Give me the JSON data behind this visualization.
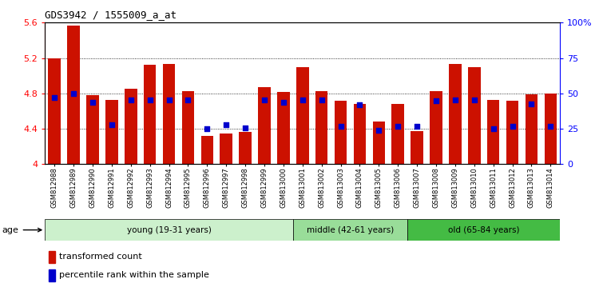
{
  "title": "GDS3942 / 1555009_a_at",
  "samples": [
    "GSM812988",
    "GSM812989",
    "GSM812990",
    "GSM812991",
    "GSM812992",
    "GSM812993",
    "GSM812994",
    "GSM812995",
    "GSM812996",
    "GSM812997",
    "GSM812998",
    "GSM812999",
    "GSM813000",
    "GSM813001",
    "GSM813002",
    "GSM813003",
    "GSM813004",
    "GSM813005",
    "GSM813006",
    "GSM813007",
    "GSM813008",
    "GSM813009",
    "GSM813010",
    "GSM813011",
    "GSM813012",
    "GSM813013",
    "GSM813014"
  ],
  "red_values": [
    5.2,
    5.57,
    4.78,
    4.73,
    4.85,
    5.12,
    5.13,
    4.83,
    4.32,
    4.35,
    4.36,
    4.87,
    4.82,
    5.1,
    4.83,
    4.72,
    4.68,
    4.48,
    4.68,
    4.37,
    4.83,
    5.13,
    5.1,
    4.73,
    4.72,
    4.79,
    4.8
  ],
  "blue_values": [
    4.75,
    4.8,
    4.7,
    4.45,
    4.73,
    4.73,
    4.73,
    4.73,
    4.4,
    4.45,
    4.41,
    4.73,
    4.7,
    4.73,
    4.73,
    4.43,
    4.67,
    4.38,
    4.43,
    4.43,
    4.72,
    4.73,
    4.73,
    4.4,
    4.43,
    4.68,
    4.43
  ],
  "groups": [
    {
      "label": "young (19-31 years)",
      "start": 0,
      "end": 13,
      "color": "#ccf0cc"
    },
    {
      "label": "middle (42-61 years)",
      "start": 13,
      "end": 19,
      "color": "#99dd99"
    },
    {
      "label": "old (65-84 years)",
      "start": 19,
      "end": 27,
      "color": "#44bb44"
    }
  ],
  "ylim_left": [
    4.0,
    5.6
  ],
  "ylim_right": [
    0,
    100
  ],
  "yticks_left": [
    4.0,
    4.4,
    4.8,
    5.2,
    5.6
  ],
  "yticks_right": [
    0,
    25,
    50,
    75,
    100
  ],
  "ytick_labels_left": [
    "4",
    "4.4",
    "4.8",
    "5.2",
    "5.6"
  ],
  "ytick_labels_right": [
    "0",
    "25",
    "50",
    "75",
    "100%"
  ],
  "bar_color": "#cc1100",
  "dot_color": "#0000cc",
  "legend_items": [
    "transformed count",
    "percentile rank within the sample"
  ],
  "grid_lines": [
    4.4,
    4.8,
    5.2
  ]
}
